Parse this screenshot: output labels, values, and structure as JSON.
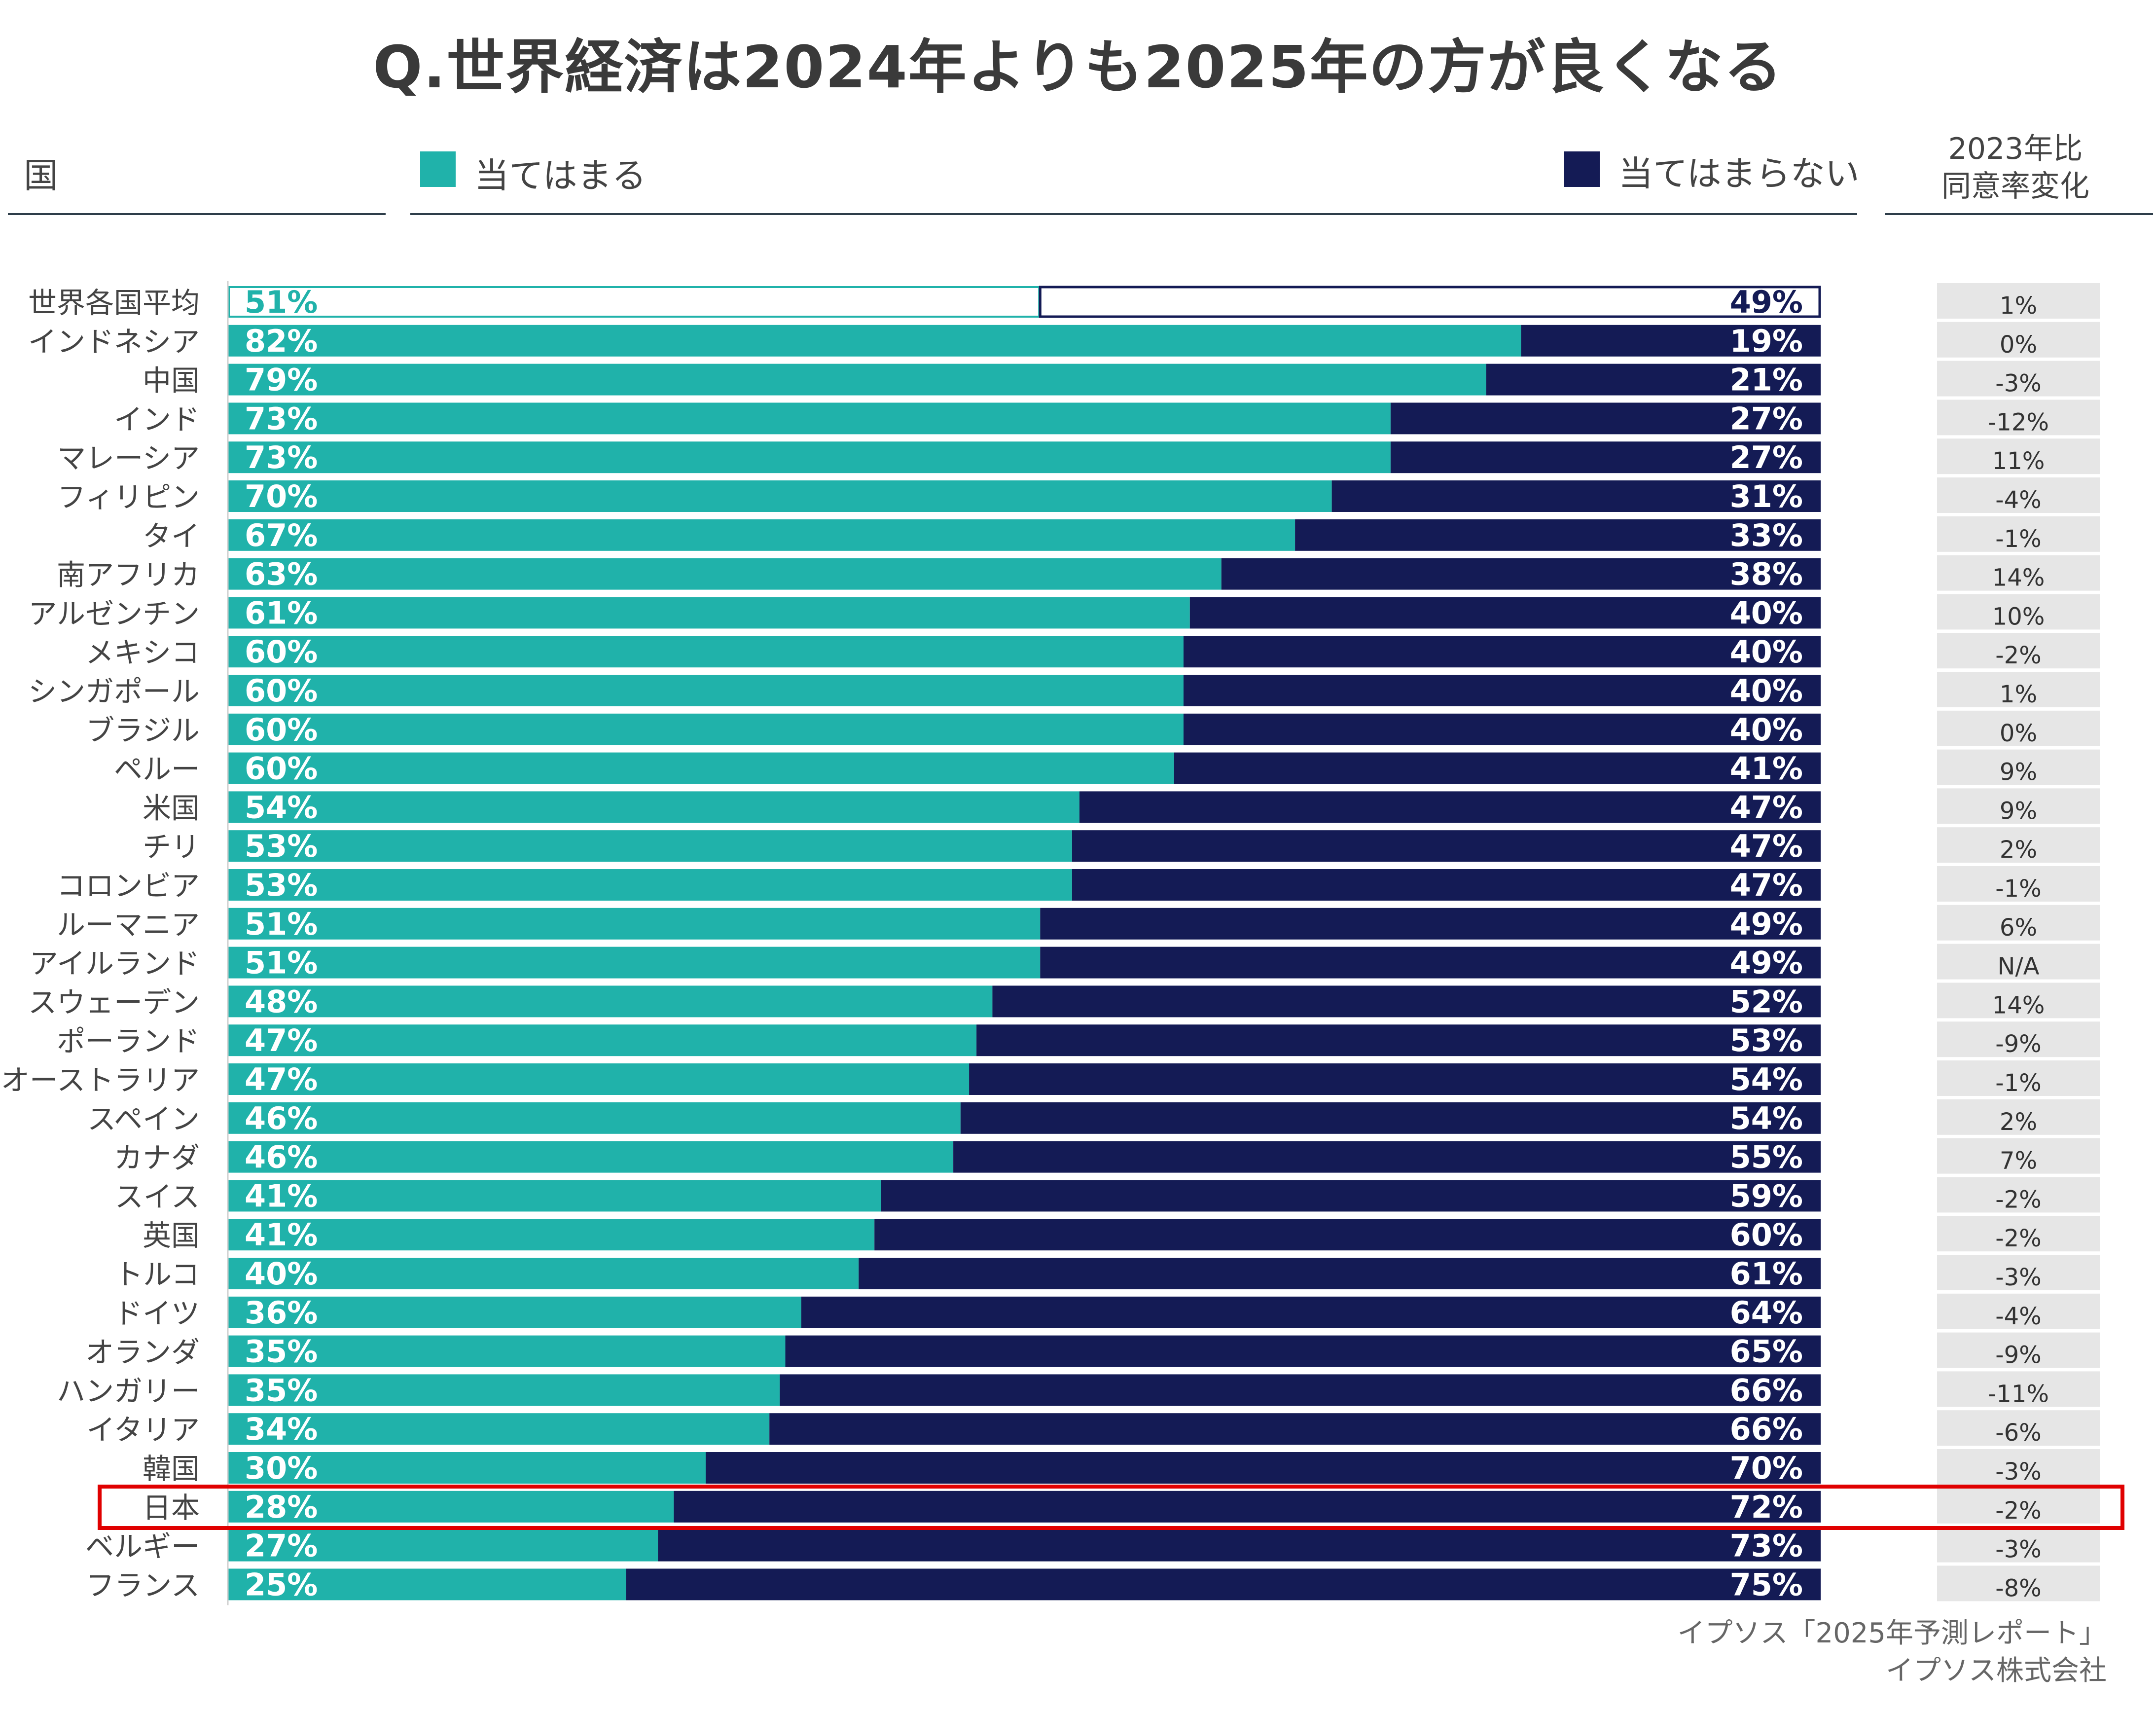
{
  "header": {
    "question": "Q.世界経済は2024年よりも2025年の方が良くなる",
    "country_col": "国",
    "legend_agree": "当てはまる",
    "legend_disagree": "当てはまらない",
    "change_col_line1": "2023年比",
    "change_col_line2": "同意率変化"
  },
  "colors": {
    "agree": "#20b2aa",
    "disagree": "#141b55",
    "change_bg": "#e6e6e6",
    "highlight": "#e00000"
  },
  "footer": {
    "line1": "イプソス「2025年予測レポート」",
    "line2": "イプソス株式会社"
  },
  "chart_data": {
    "type": "bar",
    "orientation": "horizontal",
    "stacked": true,
    "title": "Q.世界経済は2024年よりも2025年の方が良くなる",
    "xlim": [
      0,
      100
    ],
    "legend": [
      "当てはまる",
      "当てはまらない"
    ],
    "highlighted_category": "日本",
    "categories": [
      "世界各国平均",
      "インドネシア",
      "中国",
      "インド",
      "マレーシア",
      "フィリピン",
      "タイ",
      "南アフリカ",
      "アルゼンチン",
      "メキシコ",
      "シンガポール",
      "ブラジル",
      "ペルー",
      "米国",
      "チリ",
      "コロンビア",
      "ルーマニア",
      "アイルランド",
      "スウェーデン",
      "ポーランド",
      "オーストラリア",
      "スペイン",
      "カナダ",
      "スイス",
      "英国",
      "トルコ",
      "ドイツ",
      "オランダ",
      "ハンガリー",
      "イタリア",
      "韓国",
      "日本",
      "ベルギー",
      "フランス"
    ],
    "series": [
      {
        "name": "当てはまる",
        "values": [
          51,
          82,
          79,
          73,
          73,
          70,
          67,
          63,
          61,
          60,
          60,
          60,
          60,
          54,
          53,
          53,
          51,
          51,
          48,
          47,
          47,
          46,
          46,
          41,
          41,
          40,
          36,
          35,
          35,
          34,
          30,
          28,
          27,
          25
        ]
      },
      {
        "name": "当てはまらない",
        "values": [
          49,
          19,
          21,
          27,
          27,
          31,
          33,
          38,
          40,
          40,
          40,
          40,
          41,
          47,
          47,
          47,
          49,
          49,
          52,
          53,
          54,
          54,
          55,
          59,
          60,
          61,
          64,
          65,
          66,
          66,
          70,
          72,
          73,
          75
        ]
      }
    ],
    "agree_labels": [
      "51%",
      "82%",
      "79%",
      "73%",
      "73%",
      "70%",
      "67%",
      "63%",
      "61%",
      "60%",
      "60%",
      "60%",
      "60%",
      "54%",
      "53%",
      "53%",
      "51%",
      "51%",
      "48%",
      "47%",
      "47%",
      "46%",
      "46%",
      "41%",
      "41%",
      "40%",
      "36%",
      "35%",
      "35%",
      "34%",
      "30%",
      "28%",
      "27%",
      "25%"
    ],
    "disagree_labels": [
      "49%",
      "19%",
      "21%",
      "27%",
      "27%",
      "31%",
      "33%",
      "38%",
      "40%",
      "40%",
      "40%",
      "40%",
      "41%",
      "47%",
      "47%",
      "47%",
      "49%",
      "49%",
      "52%",
      "53%",
      "54%",
      "54%",
      "55%",
      "59%",
      "60%",
      "61%",
      "64%",
      "65%",
      "66%",
      "66%",
      "70%",
      "72%",
      "73%",
      "75%"
    ],
    "change_vs_2023": [
      "1%",
      "0%",
      "-3%",
      "-12%",
      "11%",
      "-4%",
      "-1%",
      "14%",
      "10%",
      "-2%",
      "1%",
      "0%",
      "9%",
      "9%",
      "2%",
      "-1%",
      "6%",
      "N/A",
      "14%",
      "-9%",
      "-1%",
      "2%",
      "7%",
      "-2%",
      "-2%",
      "-3%",
      "-4%",
      "-9%",
      "-11%",
      "-6%",
      "-3%",
      "-2%",
      "-3%",
      "-8%"
    ]
  }
}
